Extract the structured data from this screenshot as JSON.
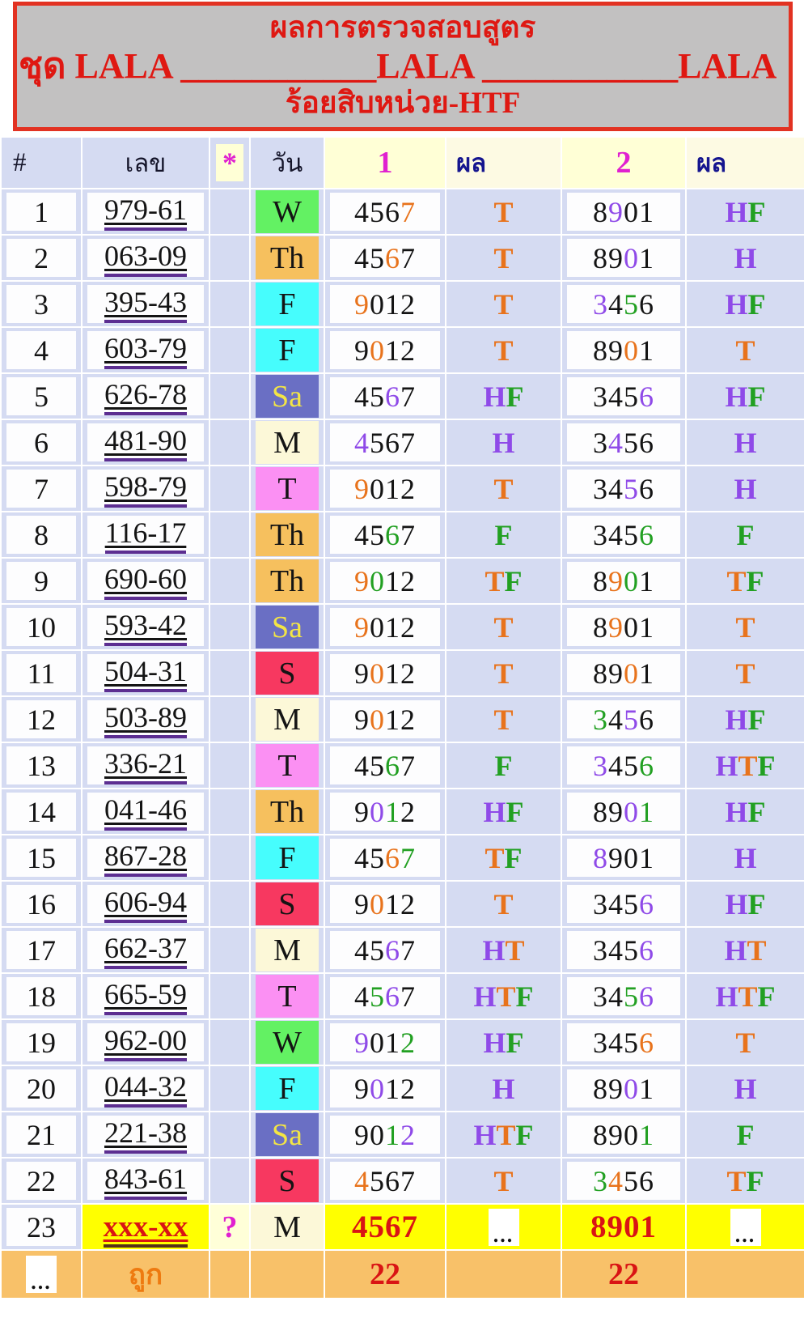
{
  "header": {
    "title": "ผลการตรวจสอบสูตร",
    "set_line": "ชุด LALA ___________LALA ___________LALA",
    "subtitle": "ร้อยสิบหน่วย-HTF"
  },
  "table": {
    "columns": [
      "#",
      "เลข",
      "*",
      "วัน",
      "1",
      "ผล",
      "2",
      "ผล"
    ],
    "pending_symbol": "...",
    "rows": [
      {
        "n": "1",
        "num": "979-61",
        "day": "W",
        "set1": {
          "d": "4567",
          "c": "kkko"
        },
        "res1": {
          "t": "T",
          "c": "o"
        },
        "set2": {
          "d": "8901",
          "c": "kpkk"
        },
        "res2": {
          "t": "HF",
          "c": "pg"
        }
      },
      {
        "n": "2",
        "num": "063-09",
        "day": "Th",
        "set1": {
          "d": "4567",
          "c": "kkok"
        },
        "res1": {
          "t": "T",
          "c": "o"
        },
        "set2": {
          "d": "8901",
          "c": "kkpk"
        },
        "res2": {
          "t": "H",
          "c": "p"
        }
      },
      {
        "n": "3",
        "num": "395-43",
        "day": "F",
        "set1": {
          "d": "9012",
          "c": "okkk"
        },
        "res1": {
          "t": "T",
          "c": "o"
        },
        "set2": {
          "d": "3456",
          "c": "pkgk"
        },
        "res2": {
          "t": "HF",
          "c": "pg"
        }
      },
      {
        "n": "4",
        "num": "603-79",
        "day": "F",
        "set1": {
          "d": "9012",
          "c": "kokk"
        },
        "res1": {
          "t": "T",
          "c": "o"
        },
        "set2": {
          "d": "8901",
          "c": "kkok"
        },
        "res2": {
          "t": "T",
          "c": "o"
        }
      },
      {
        "n": "5",
        "num": "626-78",
        "day": "Sa",
        "set1": {
          "d": "4567",
          "c": "kkpk"
        },
        "res1": {
          "t": "HF",
          "c": "pg"
        },
        "set2": {
          "d": "3456",
          "c": "kkkp"
        },
        "res2": {
          "t": "HF",
          "c": "pg"
        }
      },
      {
        "n": "6",
        "num": "481-90",
        "day": "M",
        "set1": {
          "d": "4567",
          "c": "pkkk"
        },
        "res1": {
          "t": "H",
          "c": "p"
        },
        "set2": {
          "d": "3456",
          "c": "kpkk"
        },
        "res2": {
          "t": "H",
          "c": "p"
        }
      },
      {
        "n": "7",
        "num": "598-79",
        "day": "T",
        "set1": {
          "d": "9012",
          "c": "okkk"
        },
        "res1": {
          "t": "T",
          "c": "o"
        },
        "set2": {
          "d": "3456",
          "c": "kkpk"
        },
        "res2": {
          "t": "H",
          "c": "p"
        }
      },
      {
        "n": "8",
        "num": "116-17",
        "day": "Th",
        "set1": {
          "d": "4567",
          "c": "kkgk"
        },
        "res1": {
          "t": "F",
          "c": "g"
        },
        "set2": {
          "d": "3456",
          "c": "kkkg"
        },
        "res2": {
          "t": "F",
          "c": "g"
        }
      },
      {
        "n": "9",
        "num": "690-60",
        "day": "Th",
        "set1": {
          "d": "9012",
          "c": "ogkk"
        },
        "res1": {
          "t": "TF",
          "c": "og"
        },
        "set2": {
          "d": "8901",
          "c": "kogk"
        },
        "res2": {
          "t": "TF",
          "c": "og"
        }
      },
      {
        "n": "10",
        "num": "593-42",
        "day": "Sa",
        "set1": {
          "d": "9012",
          "c": "okkk"
        },
        "res1": {
          "t": "T",
          "c": "o"
        },
        "set2": {
          "d": "8901",
          "c": "kokk"
        },
        "res2": {
          "t": "T",
          "c": "o"
        }
      },
      {
        "n": "11",
        "num": "504-31",
        "day": "S",
        "set1": {
          "d": "9012",
          "c": "kokk"
        },
        "res1": {
          "t": "T",
          "c": "o"
        },
        "set2": {
          "d": "8901",
          "c": "kkok"
        },
        "res2": {
          "t": "T",
          "c": "o"
        }
      },
      {
        "n": "12",
        "num": "503-89",
        "day": "M",
        "set1": {
          "d": "9012",
          "c": "kokk"
        },
        "res1": {
          "t": "T",
          "c": "o"
        },
        "set2": {
          "d": "3456",
          "c": "gkpk"
        },
        "res2": {
          "t": "HF",
          "c": "pg"
        }
      },
      {
        "n": "13",
        "num": "336-21",
        "day": "T",
        "set1": {
          "d": "4567",
          "c": "kkgk"
        },
        "res1": {
          "t": "F",
          "c": "g"
        },
        "set2": {
          "d": "3456",
          "c": "pkkg"
        },
        "res2": {
          "t": "HTF",
          "c": "pog"
        }
      },
      {
        "n": "14",
        "num": "041-46",
        "day": "Th",
        "set1": {
          "d": "9012",
          "c": "kpgk"
        },
        "res1": {
          "t": "HF",
          "c": "pg"
        },
        "set2": {
          "d": "8901",
          "c": "kkpg"
        },
        "res2": {
          "t": "HF",
          "c": "pg"
        }
      },
      {
        "n": "15",
        "num": "867-28",
        "day": "F",
        "set1": {
          "d": "4567",
          "c": "kkog"
        },
        "res1": {
          "t": "TF",
          "c": "og"
        },
        "set2": {
          "d": "8901",
          "c": "pkkk"
        },
        "res2": {
          "t": "H",
          "c": "p"
        }
      },
      {
        "n": "16",
        "num": "606-94",
        "day": "S",
        "set1": {
          "d": "9012",
          "c": "kokk"
        },
        "res1": {
          "t": "T",
          "c": "o"
        },
        "set2": {
          "d": "3456",
          "c": "kkkp"
        },
        "res2": {
          "t": "HF",
          "c": "pg"
        }
      },
      {
        "n": "17",
        "num": "662-37",
        "day": "M",
        "set1": {
          "d": "4567",
          "c": "kkpk"
        },
        "res1": {
          "t": "HT",
          "c": "po"
        },
        "set2": {
          "d": "3456",
          "c": "kkkp"
        },
        "res2": {
          "t": "HT",
          "c": "po"
        }
      },
      {
        "n": "18",
        "num": "665-59",
        "day": "T",
        "set1": {
          "d": "4567",
          "c": "kgpk"
        },
        "res1": {
          "t": "HTF",
          "c": "pog"
        },
        "set2": {
          "d": "3456",
          "c": "kkgp"
        },
        "res2": {
          "t": "HTF",
          "c": "pog"
        }
      },
      {
        "n": "19",
        "num": "962-00",
        "day": "W",
        "set1": {
          "d": "9012",
          "c": "pkkg"
        },
        "res1": {
          "t": "HF",
          "c": "pg"
        },
        "set2": {
          "d": "3456",
          "c": "kkko"
        },
        "res2": {
          "t": "T",
          "c": "o"
        }
      },
      {
        "n": "20",
        "num": "044-32",
        "day": "F",
        "set1": {
          "d": "9012",
          "c": "kpkk"
        },
        "res1": {
          "t": "H",
          "c": "p"
        },
        "set2": {
          "d": "8901",
          "c": "kkpk"
        },
        "res2": {
          "t": "H",
          "c": "p"
        }
      },
      {
        "n": "21",
        "num": "221-38",
        "day": "Sa",
        "set1": {
          "d": "9012",
          "c": "kkgp"
        },
        "res1": {
          "t": "HTF",
          "c": "pog"
        },
        "set2": {
          "d": "8901",
          "c": "kkkg"
        },
        "res2": {
          "t": "F",
          "c": "g"
        }
      },
      {
        "n": "22",
        "num": "843-61",
        "day": "S",
        "set1": {
          "d": "4567",
          "c": "okkk"
        },
        "res1": {
          "t": "T",
          "c": "o"
        },
        "set2": {
          "d": "3456",
          "c": "gokk"
        },
        "res2": {
          "t": "TF",
          "c": "og"
        }
      },
      {
        "n": "23",
        "num": "xxx-xx",
        "star": "?",
        "day": "M",
        "highlight": true,
        "set1": {
          "d": "4567",
          "c": "rrrr"
        },
        "res1": "...",
        "set2": {
          "d": "8901",
          "c": "rrrr"
        },
        "res2": "..."
      }
    ],
    "footer": {
      "rows_symbol": "...",
      "label": "ถูก",
      "set1_total": "22",
      "set2_total": "22"
    }
  },
  "colors": {
    "palette": {
      "k": "#141414",
      "o": "#e8731c",
      "p": "#8f4ae8",
      "g": "#22a022",
      "r": "#d91414"
    },
    "result_letters": {
      "H": "#8f4ae8",
      "T": "#e8731c",
      "F": "#22a022"
    },
    "day_colors": {
      "W": {
        "name": "wednesday",
        "bg": "#63f163",
        "fg": "#141414"
      },
      "Th": {
        "name": "thursday",
        "bg": "#f6c05e",
        "fg": "#141414"
      },
      "F": {
        "name": "friday",
        "bg": "#46fdfd",
        "fg": "#141414"
      },
      "Sa": {
        "name": "saturday",
        "bg": "#6a6fc4",
        "fg": "#f3e545"
      },
      "M": {
        "name": "monday",
        "bg": "#fcf8d8",
        "fg": "#141414"
      },
      "T": {
        "name": "tuesday",
        "bg": "#fb90f3",
        "fg": "#141414"
      },
      "S": {
        "name": "sunday",
        "bg": "#f73860",
        "fg": "#141414"
      }
    },
    "accents": {
      "grid_background": "#d5dbf2",
      "cell_white": "#fdfdfe",
      "header_box_gray": "#c2c1c1",
      "header_box_border": "#e23222",
      "title_red": "#df1812",
      "header_magenta": "#e020d0",
      "header_navy": "#15158f",
      "highlight_yellow": "#ffff00",
      "footer_orange": "#f8c169",
      "footer_label_orange": "#ee7a10",
      "underline_purple": "#5c2e91",
      "total_red": "#d91414"
    }
  }
}
